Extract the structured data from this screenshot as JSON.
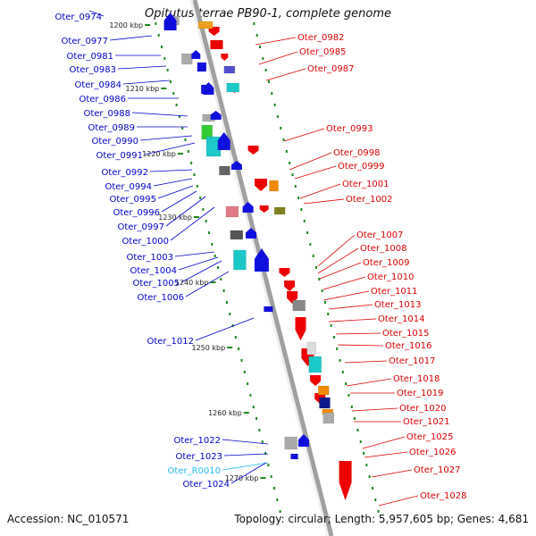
{
  "title": "Opitutus terrae PB90-1, complete genome",
  "footer": {
    "accession": "Accession: NC_010571",
    "summary": "Topology: circular; Length: 5,957,605 bp; Genes: 4,681"
  },
  "colors": {
    "backbone": "#a0a0a0",
    "left_label": "#0000cc",
    "right_label": "#dd0000",
    "rna_label": "#22bbee",
    "tick": "#1a8a1a"
  },
  "scale_labels": [
    "1200 kbp",
    "1210 kbp",
    "1220 kbp",
    "1230 kbp",
    "1240 kbp",
    "1250 kbp",
    "1260 kbp",
    "1270 kbp"
  ],
  "left_genes": [
    {
      "name": "Oter_0974"
    },
    {
      "name": "Oter_0977"
    },
    {
      "name": "Oter_0981"
    },
    {
      "name": "Oter_0983"
    },
    {
      "name": "Oter_0984"
    },
    {
      "name": "Oter_0986"
    },
    {
      "name": "Oter_0988"
    },
    {
      "name": "Oter_0989"
    },
    {
      "name": "Oter_0990"
    },
    {
      "name": "Oter_0991"
    },
    {
      "name": "Oter_0992"
    },
    {
      "name": "Oter_0994"
    },
    {
      "name": "Oter_0995"
    },
    {
      "name": "Oter_0996"
    },
    {
      "name": "Oter_0997"
    },
    {
      "name": "Oter_1000"
    },
    {
      "name": "Oter_1003"
    },
    {
      "name": "Oter_1004"
    },
    {
      "name": "Oter_1005"
    },
    {
      "name": "Oter_1006"
    },
    {
      "name": "Oter_1012"
    },
    {
      "name": "Oter_1022"
    },
    {
      "name": "Oter_1023"
    },
    {
      "name": "Oter_R0010"
    },
    {
      "name": "Oter_1024"
    }
  ],
  "right_genes": [
    {
      "name": "Oter_0982"
    },
    {
      "name": "Oter_0985"
    },
    {
      "name": "Oter_0987"
    },
    {
      "name": "Oter_0993"
    },
    {
      "name": "Oter_0998"
    },
    {
      "name": "Oter_0999"
    },
    {
      "name": "Oter_1001"
    },
    {
      "name": "Oter_1002"
    },
    {
      "name": "Oter_1007"
    },
    {
      "name": "Oter_1008"
    },
    {
      "name": "Oter_1009"
    },
    {
      "name": "Oter_1010"
    },
    {
      "name": "Oter_1011"
    },
    {
      "name": "Oter_1013"
    },
    {
      "name": "Oter_1014"
    },
    {
      "name": "Oter_1015"
    },
    {
      "name": "Oter_1016"
    },
    {
      "name": "Oter_1017"
    },
    {
      "name": "Oter_1018"
    },
    {
      "name": "Oter_1019"
    },
    {
      "name": "Oter_1020"
    },
    {
      "name": "Oter_1021"
    },
    {
      "name": "Oter_1025"
    },
    {
      "name": "Oter_1026"
    },
    {
      "name": "Oter_1027"
    },
    {
      "name": "Oter_1028"
    }
  ]
}
